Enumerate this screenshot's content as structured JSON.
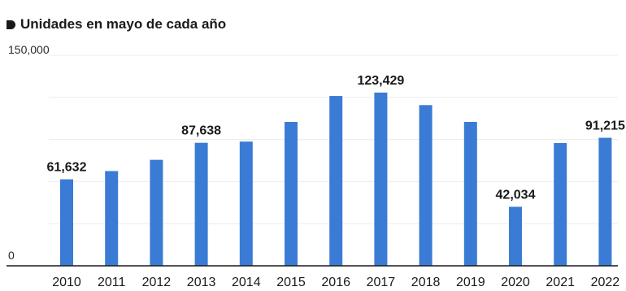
{
  "chart_data": {
    "type": "bar",
    "title": "Unidades en mayo de cada año",
    "categories": [
      "2010",
      "2011",
      "2012",
      "2013",
      "2014",
      "2015",
      "2016",
      "2017",
      "2018",
      "2019",
      "2020",
      "2021",
      "2022"
    ],
    "values": [
      61632,
      67500,
      75500,
      87638,
      88500,
      102500,
      121000,
      123429,
      114500,
      102500,
      42034,
      87500,
      91215
    ],
    "data_labels": {
      "0": "61,632",
      "3": "87,638",
      "7": "123,429",
      "10": "42,034",
      "12": "91,215"
    },
    "y_ticks": [
      {
        "value": 0,
        "label": "0"
      },
      {
        "value": 150000,
        "label": "150,000"
      }
    ],
    "ylim": [
      0,
      150000
    ],
    "grid": true,
    "bar_color": "#3a7bd5"
  }
}
